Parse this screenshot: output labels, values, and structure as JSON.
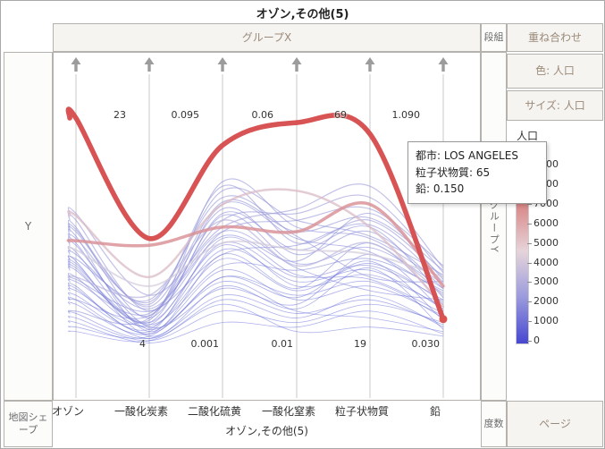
{
  "window": {
    "title": "オゾン,その他(5)"
  },
  "toolbar": {
    "group_x": "グループX",
    "dankumi": "段組",
    "overlay": "重ね合わせ"
  },
  "left_panel": {
    "y_label": "Y",
    "map_shape": "地図シェープ"
  },
  "right_panel": {
    "color_by": "色: 人口",
    "size_by": "サイズ: 人口",
    "group_y": "グループY",
    "frequency": "度数",
    "page": "ページ"
  },
  "tooltip": {
    "lines": [
      "都市: LOS ANGELES",
      "粒子状物質: 65",
      "鉛: 0.150"
    ]
  },
  "chart_data": {
    "type": "parallel-coordinates",
    "title": "オゾン,その他(5)",
    "title_bottom": "オゾン,その他(5)",
    "axes": [
      {
        "name": "オゾン",
        "max": "",
        "min": ""
      },
      {
        "name": "一酸化炭素",
        "max": "23",
        "min": "4"
      },
      {
        "name": "二酸化硫黄",
        "max": "0.095",
        "min": "0.001"
      },
      {
        "name": "一酸化窒素",
        "max": "0.06",
        "min": "0.01"
      },
      {
        "name": "粒子状物質",
        "max": "69",
        "min": "19"
      },
      {
        "name": "鉛",
        "max": "1.090",
        "min": "0.030"
      }
    ],
    "legend": {
      "title": "人口",
      "ticks": [
        9000,
        8000,
        7000,
        6000,
        5000,
        4000,
        3000,
        2000,
        1000,
        0
      ],
      "gradient_stops": [
        "#c23b3b",
        "#d98888",
        "#e6d4da",
        "#9a9add",
        "#4747d1"
      ]
    },
    "highlight": {
      "city": "LOS ANGELES",
      "dot_color": "#d9534f"
    },
    "pop_max": 9000,
    "series": [
      {
        "pop": 8800,
        "v": [
          1.0,
          0.47,
          0.88,
          0.98,
          0.93,
          0.115
        ]
      },
      {
        "pop": 6600,
        "v": [
          0.46,
          0.44,
          0.52,
          0.5,
          0.62,
          0.26
        ]
      },
      {
        "pop": 5200,
        "v": [
          0.57,
          0.3,
          0.62,
          0.68,
          0.52,
          0.17
        ]
      },
      {
        "pop": 4300,
        "v": [
          0.42,
          0.26,
          0.45,
          0.42,
          0.4,
          0.3
        ]
      },
      {
        "pop": 3400,
        "v": [
          0.3,
          0.22,
          0.55,
          0.35,
          0.45,
          0.22
        ]
      },
      {
        "pop": 2500,
        "v": [
          0.5,
          0.18,
          0.7,
          0.45,
          0.55,
          0.3
        ]
      },
      {
        "pop": 1800,
        "v": [
          0.35,
          0.1,
          0.45,
          0.3,
          0.35,
          0.2
        ]
      },
      {
        "pop": 900,
        "v": [
          0.25,
          0.05,
          0.3,
          0.22,
          0.28,
          0.12
        ]
      },
      {
        "pop": 2200,
        "v": [
          0.15,
          0.12,
          0.6,
          0.4,
          0.5,
          0.25
        ]
      },
      {
        "pop": 1200,
        "v": [
          0.45,
          0.08,
          0.25,
          0.18,
          0.4,
          0.15
        ]
      },
      {
        "pop": 2400,
        "v": [
          0.55,
          0.15,
          0.5,
          0.55,
          0.6,
          0.35
        ]
      },
      {
        "pop": 400,
        "v": [
          0.2,
          0.03,
          0.2,
          0.12,
          0.22,
          0.08
        ]
      },
      {
        "pop": 2000,
        "v": [
          0.38,
          0.2,
          0.65,
          0.48,
          0.3,
          0.28
        ]
      },
      {
        "pop": 1100,
        "v": [
          0.48,
          0.06,
          0.4,
          0.25,
          0.45,
          0.18
        ]
      },
      {
        "pop": 2300,
        "v": [
          0.28,
          0.14,
          0.55,
          0.58,
          0.65,
          0.32
        ]
      },
      {
        "pop": 300,
        "v": [
          0.12,
          0.02,
          0.15,
          0.1,
          0.18,
          0.1
        ]
      },
      {
        "pop": 1500,
        "v": [
          0.33,
          0.09,
          0.35,
          0.33,
          0.38,
          0.24
        ]
      },
      {
        "pop": 1700,
        "v": [
          0.52,
          0.12,
          0.58,
          0.42,
          0.52,
          0.21
        ]
      },
      {
        "pop": 500,
        "v": [
          0.08,
          0.04,
          0.28,
          0.15,
          0.12,
          0.06
        ]
      },
      {
        "pop": 1900,
        "v": [
          0.4,
          0.16,
          0.48,
          0.37,
          0.58,
          0.29
        ]
      },
      {
        "pop": 800,
        "v": [
          0.22,
          0.07,
          0.42,
          0.28,
          0.33,
          0.16
        ]
      },
      {
        "pop": 2100,
        "v": [
          0.36,
          0.11,
          0.72,
          0.52,
          0.47,
          0.27
        ]
      },
      {
        "pop": 700,
        "v": [
          0.18,
          0.05,
          0.33,
          0.2,
          0.26,
          0.13
        ]
      },
      {
        "pop": 1600,
        "v": [
          0.44,
          0.13,
          0.62,
          0.47,
          0.41,
          0.23
        ]
      },
      {
        "pop": 1000,
        "v": [
          0.3,
          0.08,
          0.38,
          0.24,
          0.36,
          0.19
        ]
      },
      {
        "pop": 2600,
        "v": [
          0.58,
          0.22,
          0.52,
          0.6,
          0.7,
          0.34
        ]
      },
      {
        "pop": 200,
        "v": [
          0.1,
          0.01,
          0.1,
          0.08,
          0.15,
          0.05
        ]
      },
      {
        "pop": 850,
        "v": [
          0.26,
          0.06,
          0.47,
          0.31,
          0.29,
          0.14
        ]
      },
      {
        "pop": 2250,
        "v": [
          0.47,
          0.19,
          0.68,
          0.55,
          0.48,
          0.31
        ]
      },
      {
        "pop": 450,
        "v": [
          0.14,
          0.03,
          0.22,
          0.14,
          0.2,
          0.09
        ]
      },
      {
        "pop": 1400,
        "v": [
          0.34,
          0.1,
          0.57,
          0.36,
          0.43,
          0.25
        ]
      },
      {
        "pop": 950,
        "v": [
          0.24,
          0.09,
          0.44,
          0.26,
          0.31,
          0.17
        ]
      },
      {
        "pop": 1300,
        "v": [
          0.41,
          0.07,
          0.3,
          0.21,
          0.37,
          0.11
        ]
      },
      {
        "pop": 250,
        "v": [
          0.06,
          0.02,
          0.18,
          0.06,
          0.08,
          0.04
        ]
      },
      {
        "pop": 2350,
        "v": [
          0.51,
          0.17,
          0.63,
          0.5,
          0.56,
          0.33
        ]
      },
      {
        "pop": 1050,
        "v": [
          0.2,
          0.13,
          0.5,
          0.34,
          0.24,
          0.2
        ]
      },
      {
        "pop": 600,
        "v": [
          0.37,
          0.04,
          0.26,
          0.16,
          0.34,
          0.07
        ]
      },
      {
        "pop": 1750,
        "v": [
          0.29,
          0.15,
          0.4,
          0.44,
          0.53,
          0.28
        ]
      }
    ]
  }
}
